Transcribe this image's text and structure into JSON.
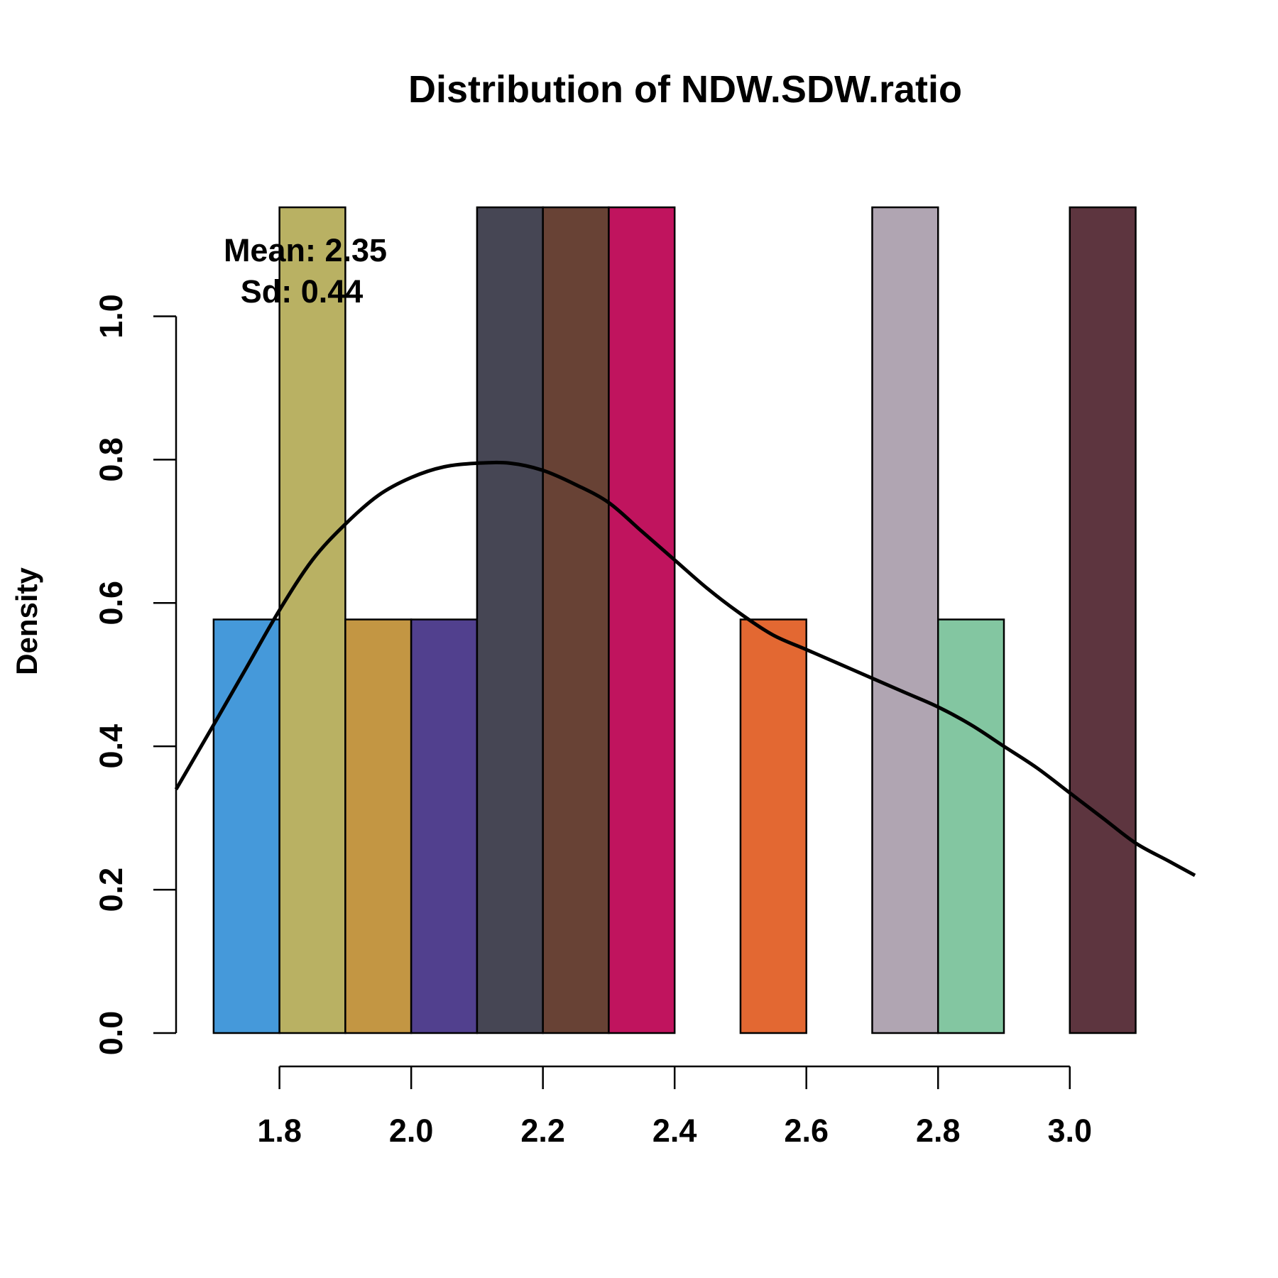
{
  "chart_data": {
    "type": "bar",
    "title": "Distribution of NDW.SDW.ratio",
    "ylabel": "Density",
    "xlabel": "",
    "annotations": {
      "mean": "Mean: 2.35",
      "sd": "Sd: 0.44"
    },
    "x_ticks": [
      "1.8",
      "2.0",
      "2.2",
      "2.4",
      "2.6",
      "2.8",
      "3.0"
    ],
    "y_ticks": [
      "0.0",
      "0.2",
      "0.4",
      "0.6",
      "0.8",
      "1.0"
    ],
    "xlim": [
      1.643,
      3.19
    ],
    "ylim": [
      0,
      1.0
    ],
    "bins": [
      {
        "start": 1.7,
        "end": 1.8,
        "density": 0.577,
        "color": "#4599da"
      },
      {
        "start": 1.8,
        "end": 1.9,
        "density": 1.154,
        "color": "#b9b163"
      },
      {
        "start": 1.9,
        "end": 2.0,
        "density": 0.577,
        "color": "#c39643"
      },
      {
        "start": 2.0,
        "end": 2.1,
        "density": 0.577,
        "color": "#51408e"
      },
      {
        "start": 2.1,
        "end": 2.2,
        "density": 1.154,
        "color": "#464654"
      },
      {
        "start": 2.2,
        "end": 2.3,
        "density": 1.154,
        "color": "#684235"
      },
      {
        "start": 2.3,
        "end": 2.4,
        "density": 1.154,
        "color": "#c0145e"
      },
      {
        "start": 2.5,
        "end": 2.6,
        "density": 0.577,
        "color": "#e36832"
      },
      {
        "start": 2.7,
        "end": 2.8,
        "density": 1.154,
        "color": "#b0a5b2"
      },
      {
        "start": 2.8,
        "end": 2.9,
        "density": 0.577,
        "color": "#83c6a1"
      },
      {
        "start": 3.0,
        "end": 3.1,
        "density": 1.154,
        "color": "#5d353f"
      }
    ],
    "density_curve": [
      [
        1.643,
        0.34
      ],
      [
        1.7,
        0.43
      ],
      [
        1.75,
        0.51
      ],
      [
        1.8,
        0.59
      ],
      [
        1.85,
        0.66
      ],
      [
        1.9,
        0.71
      ],
      [
        1.95,
        0.75
      ],
      [
        2.0,
        0.775
      ],
      [
        2.05,
        0.79
      ],
      [
        2.1,
        0.795
      ],
      [
        2.15,
        0.795
      ],
      [
        2.2,
        0.785
      ],
      [
        2.25,
        0.765
      ],
      [
        2.3,
        0.74
      ],
      [
        2.35,
        0.7
      ],
      [
        2.4,
        0.66
      ],
      [
        2.45,
        0.62
      ],
      [
        2.5,
        0.585
      ],
      [
        2.55,
        0.555
      ],
      [
        2.6,
        0.535
      ],
      [
        2.65,
        0.515
      ],
      [
        2.7,
        0.495
      ],
      [
        2.75,
        0.475
      ],
      [
        2.8,
        0.455
      ],
      [
        2.85,
        0.43
      ],
      [
        2.9,
        0.4
      ],
      [
        2.95,
        0.37
      ],
      [
        3.0,
        0.335
      ],
      [
        3.05,
        0.3
      ],
      [
        3.1,
        0.265
      ],
      [
        3.15,
        0.24
      ],
      [
        3.19,
        0.22
      ]
    ]
  }
}
